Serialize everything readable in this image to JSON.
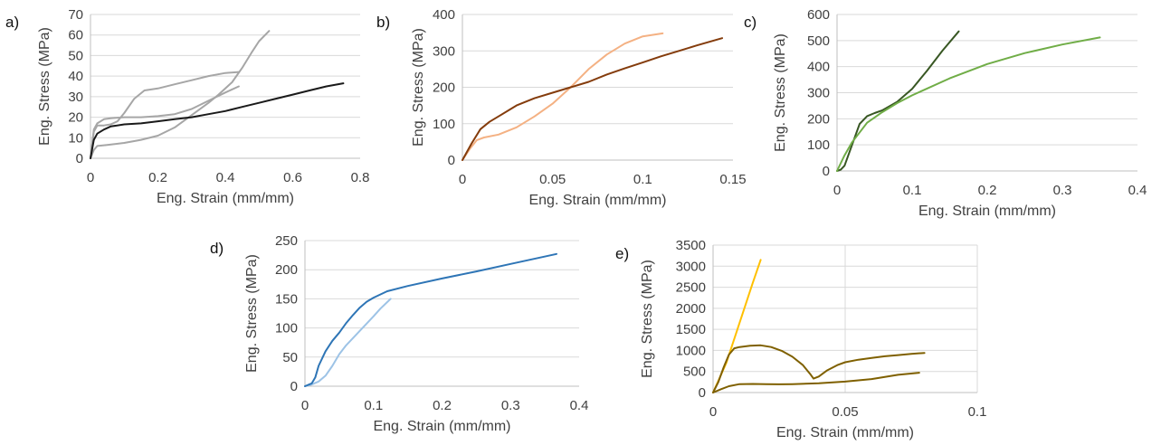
{
  "chart_data": [
    {
      "panel": "a)",
      "type": "line",
      "xlabel": "Eng. Strain (mm/mm)",
      "ylabel": "Eng. Stress (MPa)",
      "xlim": [
        0,
        0.8
      ],
      "ylim": [
        0,
        70
      ],
      "xticks": [
        "0",
        "0.2",
        "0.4",
        "0.6",
        "0.8"
      ],
      "yticks": [
        "0",
        "10",
        "20",
        "30",
        "40",
        "50",
        "60",
        "70"
      ],
      "grid": "horizontal",
      "series": [
        {
          "color": "#a6a6a6",
          "x": [
            0,
            0.01,
            0.02,
            0.05,
            0.1,
            0.15,
            0.2,
            0.25,
            0.3,
            0.35,
            0.38,
            0.42,
            0.45,
            0.48,
            0.5,
            0.53
          ],
          "y": [
            0,
            4,
            6,
            6.5,
            7.5,
            9,
            11,
            15,
            21,
            27,
            31,
            37,
            44,
            52,
            57,
            62
          ]
        },
        {
          "color": "#a6a6a6",
          "x": [
            0,
            0.01,
            0.02,
            0.04,
            0.06,
            0.1,
            0.15,
            0.2,
            0.25,
            0.3,
            0.35,
            0.4,
            0.44
          ],
          "y": [
            0,
            14,
            17,
            19,
            19.5,
            20,
            20,
            20.5,
            21.5,
            24,
            28,
            32,
            35
          ]
        },
        {
          "color": "#a6a6a6",
          "x": [
            0,
            0.01,
            0.02,
            0.04,
            0.06,
            0.08,
            0.1,
            0.13,
            0.16,
            0.2,
            0.25,
            0.3,
            0.35,
            0.4,
            0.44
          ],
          "y": [
            0,
            13,
            16,
            16,
            16.5,
            18,
            22,
            29,
            33,
            34,
            36,
            38,
            40,
            41.5,
            42
          ]
        },
        {
          "color": "#1a1a1a",
          "x": [
            0,
            0.01,
            0.02,
            0.04,
            0.06,
            0.1,
            0.15,
            0.2,
            0.25,
            0.3,
            0.35,
            0.4,
            0.45,
            0.5,
            0.55,
            0.6,
            0.65,
            0.7,
            0.75
          ],
          "y": [
            0,
            9,
            12,
            14,
            15.5,
            16.5,
            17,
            18,
            19,
            20,
            21.5,
            23,
            25,
            27,
            29,
            31,
            33,
            35,
            36.5
          ]
        }
      ]
    },
    {
      "panel": "b)",
      "type": "line",
      "xlabel": "Eng. Strain (mm/mm)",
      "ylabel": "Eng. Stress (MPa)",
      "xlim": [
        0,
        0.15
      ],
      "ylim": [
        0,
        400
      ],
      "xticks": [
        "0",
        "0.05",
        "0.1",
        "0.15"
      ],
      "yticks": [
        "0",
        "100",
        "200",
        "300",
        "400"
      ],
      "grid": "horizontal",
      "series": [
        {
          "color": "#f4b183",
          "x": [
            0,
            0.004,
            0.008,
            0.012,
            0.02,
            0.03,
            0.04,
            0.05,
            0.06,
            0.07,
            0.08,
            0.09,
            0.1,
            0.111
          ],
          "y": [
            0,
            30,
            55,
            62,
            70,
            90,
            120,
            155,
            200,
            250,
            290,
            320,
            340,
            348
          ]
        },
        {
          "color": "#843c0c",
          "x": [
            0,
            0.005,
            0.01,
            0.015,
            0.02,
            0.03,
            0.04,
            0.05,
            0.06,
            0.07,
            0.08,
            0.09,
            0.1,
            0.11,
            0.12,
            0.13,
            0.144
          ],
          "y": [
            0,
            45,
            85,
            105,
            120,
            150,
            170,
            185,
            200,
            215,
            235,
            252,
            268,
            285,
            300,
            315,
            335
          ]
        }
      ]
    },
    {
      "panel": "c)",
      "type": "line",
      "xlabel": "Eng. Strain (mm/mm)",
      "ylabel": "Eng. Stress (MPa)",
      "xlim": [
        0,
        0.4
      ],
      "ylim": [
        0,
        600
      ],
      "xticks": [
        "0",
        "0.1",
        "0.2",
        "0.3",
        "0.4"
      ],
      "yticks": [
        "0",
        "100",
        "200",
        "300",
        "400",
        "500",
        "600"
      ],
      "grid": "horizontal",
      "series": [
        {
          "color": "#385723",
          "x": [
            0,
            0.005,
            0.01,
            0.02,
            0.03,
            0.04,
            0.05,
            0.06,
            0.08,
            0.1,
            0.12,
            0.14,
            0.162
          ],
          "y": [
            0,
            5,
            20,
            100,
            180,
            210,
            222,
            232,
            265,
            315,
            385,
            460,
            535
          ]
        },
        {
          "color": "#70ad47",
          "x": [
            0,
            0.01,
            0.02,
            0.04,
            0.06,
            0.08,
            0.1,
            0.15,
            0.2,
            0.25,
            0.3,
            0.35
          ],
          "y": [
            0,
            60,
            110,
            185,
            225,
            260,
            290,
            355,
            410,
            452,
            485,
            512
          ]
        }
      ]
    },
    {
      "panel": "d)",
      "type": "line",
      "xlabel": "Eng. Strain (mm/mm)",
      "ylabel": "Eng. Stress (MPa)",
      "xlim": [
        0,
        0.4
      ],
      "ylim": [
        0,
        250
      ],
      "xticks": [
        "0",
        "0.1",
        "0.2",
        "0.3",
        "0.4"
      ],
      "yticks": [
        "0",
        "50",
        "100",
        "150",
        "200",
        "250"
      ],
      "grid": "horizontal",
      "series": [
        {
          "color": "#9dc3e6",
          "x": [
            0,
            0.01,
            0.02,
            0.03,
            0.04,
            0.05,
            0.06,
            0.08,
            0.1,
            0.11,
            0.125
          ],
          "y": [
            0,
            3,
            8,
            18,
            35,
            55,
            70,
            95,
            120,
            133,
            150
          ]
        },
        {
          "color": "#2e75b6",
          "x": [
            0,
            0.01,
            0.015,
            0.02,
            0.03,
            0.04,
            0.05,
            0.06,
            0.07,
            0.08,
            0.09,
            0.1,
            0.12,
            0.15,
            0.2,
            0.25,
            0.3,
            0.367
          ],
          "y": [
            0,
            5,
            15,
            35,
            60,
            78,
            92,
            108,
            122,
            135,
            145,
            152,
            163,
            172,
            185,
            197,
            210,
            227
          ]
        }
      ]
    },
    {
      "panel": "e)",
      "type": "line",
      "xlabel": "Eng. Strain (mm/mm)",
      "ylabel": "Eng. Stress (MPa)",
      "xlim": [
        0,
        0.1
      ],
      "ylim": [
        0,
        3500
      ],
      "xticks": [
        "0",
        "0.05",
        "0.1"
      ],
      "yticks": [
        "0",
        "500",
        "1000",
        "1500",
        "2000",
        "2500",
        "3000",
        "3500"
      ],
      "grid": "both",
      "series": [
        {
          "color": "#ffc000",
          "x": [
            0,
            0.005,
            0.01,
            0.015,
            0.018
          ],
          "y": [
            0,
            700,
            1650,
            2600,
            3150
          ]
        },
        {
          "color": "#7f6000",
          "x": [
            0,
            0.002,
            0.004,
            0.006,
            0.008,
            0.01,
            0.014,
            0.018,
            0.022,
            0.026,
            0.03,
            0.034,
            0.037,
            0.038,
            0.04,
            0.043,
            0.047,
            0.05,
            0.055,
            0.06,
            0.065,
            0.07,
            0.075,
            0.08
          ],
          "y": [
            0,
            250,
            600,
            900,
            1050,
            1080,
            1110,
            1120,
            1080,
            990,
            850,
            650,
            420,
            330,
            380,
            520,
            650,
            720,
            780,
            820,
            860,
            890,
            920,
            940
          ]
        },
        {
          "color": "#7f6000",
          "x": [
            0,
            0.003,
            0.006,
            0.01,
            0.015,
            0.02,
            0.025,
            0.03,
            0.04,
            0.05,
            0.06,
            0.07,
            0.078
          ],
          "y": [
            0,
            80,
            150,
            200,
            205,
            200,
            195,
            200,
            220,
            260,
            320,
            420,
            470
          ]
        }
      ]
    }
  ]
}
